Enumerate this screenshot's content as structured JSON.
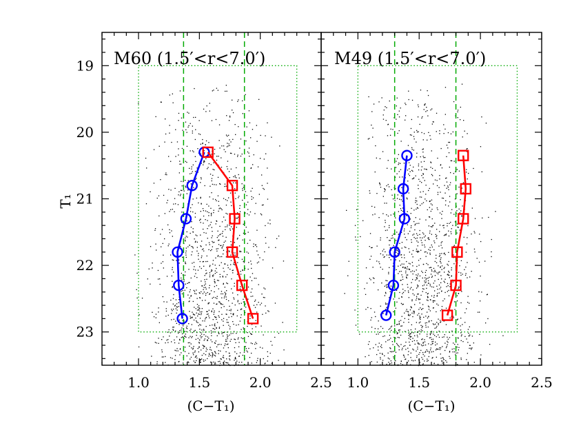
{
  "chart_data": [
    {
      "type": "scatter",
      "title": "M60 (1.5′<r<7.0′)",
      "xlabel": "(C−T₁)",
      "ylabel": "T₁",
      "xlim": [
        0.7,
        2.5
      ],
      "ylim": [
        23.5,
        18.5
      ],
      "xticks": [
        "1.0",
        "1.5",
        "2.0",
        "2.5"
      ],
      "yticks": [
        "19",
        "20",
        "21",
        "22",
        "23"
      ],
      "selection_box": {
        "x": [
          1.0,
          2.3
        ],
        "y": [
          19.0,
          23.0
        ]
      },
      "dividers": [
        1.37,
        1.87
      ],
      "series": [
        {
          "color": "#0000ff",
          "marker": "circle",
          "x": [
            1.54,
            1.44,
            1.39,
            1.32,
            1.33,
            1.36
          ],
          "y": [
            20.3,
            20.8,
            21.3,
            21.8,
            22.3,
            22.8
          ]
        },
        {
          "color": "#ff0000",
          "marker": "square",
          "x": [
            1.57,
            1.77,
            1.79,
            1.77,
            1.85,
            1.94
          ],
          "y": [
            20.3,
            20.8,
            21.3,
            21.8,
            22.3,
            22.8
          ]
        }
      ]
    },
    {
      "type": "scatter",
      "title": "M49 (1.5′<r<7.0′)",
      "xlabel": "(C−T₁)",
      "ylabel": "",
      "xlim": [
        0.7,
        2.5
      ],
      "ylim": [
        23.5,
        18.5
      ],
      "xticks": [
        "1.0",
        "1.5",
        "2.0",
        "2.5"
      ],
      "yticks": [],
      "selection_box": {
        "x": [
          1.0,
          2.3
        ],
        "y": [
          19.0,
          23.0
        ]
      },
      "dividers": [
        1.3,
        1.8
      ],
      "series": [
        {
          "color": "#0000ff",
          "marker": "circle",
          "x": [
            1.4,
            1.37,
            1.38,
            1.3,
            1.29,
            1.23
          ],
          "y": [
            20.35,
            20.85,
            21.3,
            21.8,
            22.3,
            22.75
          ]
        },
        {
          "color": "#ff0000",
          "marker": "square",
          "x": [
            1.86,
            1.88,
            1.86,
            1.81,
            1.8,
            1.73
          ],
          "y": [
            20.35,
            20.85,
            21.3,
            21.8,
            22.3,
            22.75
          ]
        }
      ]
    }
  ],
  "colors": {
    "axis": "#000000",
    "guide": "#00aa00",
    "points": "#000000"
  }
}
